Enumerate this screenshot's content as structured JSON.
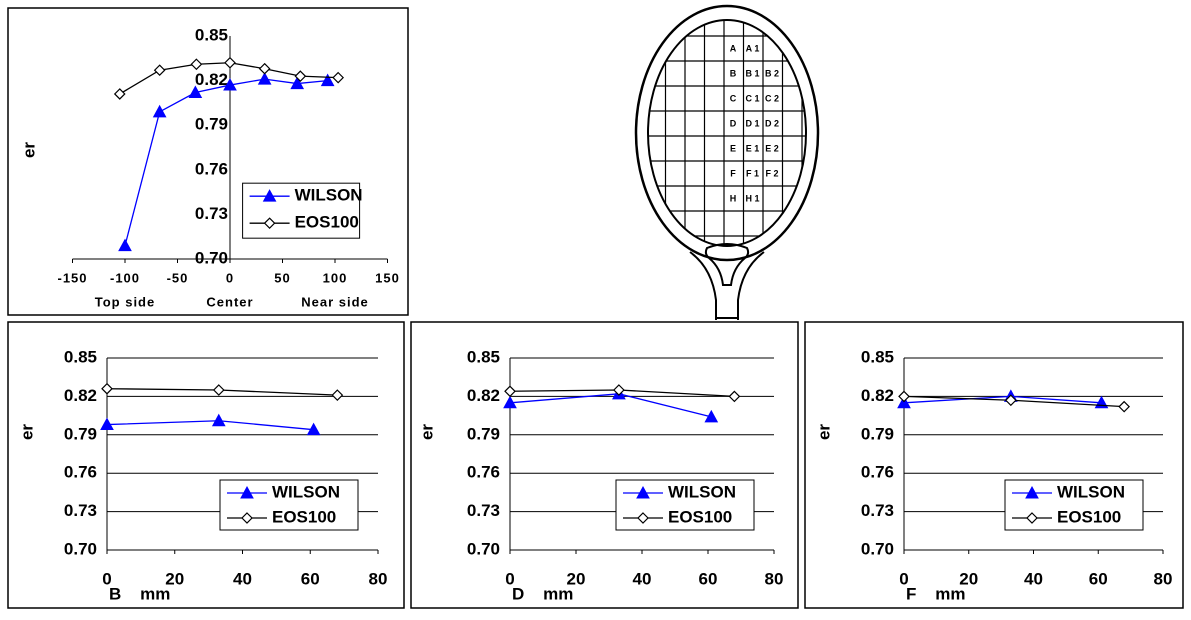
{
  "chart_data": [
    {
      "type": "line",
      "xlim": [
        -150,
        150
      ],
      "xticks": [
        -150,
        -100,
        -50,
        0,
        50,
        100,
        150
      ],
      "ylim": [
        0.7,
        0.85
      ],
      "yticks": [
        {
          "value": 0.7,
          "label": "0.70"
        },
        0.73,
        0.76,
        0.79,
        0.82,
        0.85
      ],
      "ylabel": "er",
      "grid": false,
      "legend": "center right",
      "x_annotations": [
        {
          "x": -100,
          "text": "Top side"
        },
        {
          "x": 0,
          "text": "Center"
        },
        {
          "x": 100,
          "text": "Near side"
        }
      ],
      "series": [
        {
          "name": "WILSON",
          "color": "#0000ff",
          "marker": "triangle",
          "x": [
            -100,
            -67,
            -33,
            0,
            33,
            64,
            93
          ],
          "values": [
            0.709,
            0.799,
            0.812,
            0.817,
            0.821,
            0.818,
            0.82
          ]
        },
        {
          "name": "EOS100",
          "color": "#000000",
          "marker": "diamond",
          "x": [
            -105,
            -67,
            -32,
            0,
            33,
            67,
            103
          ],
          "values": [
            0.811,
            0.827,
            0.831,
            0.832,
            0.828,
            0.823,
            0.822
          ]
        }
      ]
    },
    {
      "type": "line",
      "xlim": [
        0,
        80
      ],
      "xticks": [
        0,
        20,
        40,
        60,
        80
      ],
      "ylim": [
        0.7,
        0.85
      ],
      "yticks": [
        {
          "value": 0.7,
          "label": "0.70"
        },
        0.73,
        0.76,
        0.79,
        0.82,
        0.85
      ],
      "ylabel": "er",
      "xlabel": "B    mm",
      "grid": true,
      "legend": "lower right",
      "series": [
        {
          "name": "WILSON",
          "color": "#0000ff",
          "marker": "triangle",
          "x": [
            0,
            33,
            61
          ],
          "values": [
            0.798,
            0.801,
            0.794
          ]
        },
        {
          "name": "EOS100",
          "color": "#000000",
          "marker": "diamond",
          "x": [
            0,
            33,
            68
          ],
          "values": [
            0.826,
            0.825,
            0.821
          ]
        }
      ]
    },
    {
      "type": "line",
      "xlim": [
        0,
        80
      ],
      "xticks": [
        0,
        20,
        40,
        60,
        80
      ],
      "ylim": [
        0.7,
        0.85
      ],
      "yticks": [
        {
          "value": 0.7,
          "label": "0.70"
        },
        0.73,
        0.76,
        0.79,
        0.82,
        0.85
      ],
      "ylabel": "er",
      "xlabel": "D    mm",
      "grid": true,
      "legend": "lower right",
      "series": [
        {
          "name": "WILSON",
          "color": "#0000ff",
          "marker": "triangle",
          "x": [
            0,
            33,
            61
          ],
          "values": [
            0.815,
            0.822,
            0.804
          ]
        },
        {
          "name": "EOS100",
          "color": "#000000",
          "marker": "diamond",
          "x": [
            0,
            33,
            68
          ],
          "values": [
            0.824,
            0.825,
            0.82
          ]
        }
      ]
    },
    {
      "type": "line",
      "xlim": [
        0,
        80
      ],
      "xticks": [
        0,
        20,
        40,
        60,
        80
      ],
      "ylim": [
        0.7,
        0.85
      ],
      "yticks": [
        {
          "value": 0.7,
          "label": "0.70"
        },
        0.73,
        0.76,
        0.79,
        0.82,
        0.85
      ],
      "ylabel": "er",
      "xlabel": "F    mm",
      "grid": true,
      "legend": "lower right",
      "series": [
        {
          "name": "WILSON",
          "color": "#0000ff",
          "marker": "triangle",
          "x": [
            0,
            33,
            61
          ],
          "values": [
            0.815,
            0.82,
            0.815
          ]
        },
        {
          "name": "EOS100",
          "color": "#000000",
          "marker": "diamond",
          "x": [
            0,
            33,
            68
          ],
          "values": [
            0.82,
            0.817,
            0.812
          ]
        }
      ]
    }
  ],
  "racket": {
    "rows": [
      [
        "A",
        "A 1"
      ],
      [
        "B",
        "B 1",
        "B 2"
      ],
      [
        "C",
        "C 1",
        "C 2"
      ],
      [
        "D",
        "D 1",
        "D 2"
      ],
      [
        "E",
        "E 1",
        "E 2"
      ],
      [
        "F",
        "F 1",
        "F 2"
      ],
      [
        "H",
        "H 1"
      ]
    ]
  }
}
